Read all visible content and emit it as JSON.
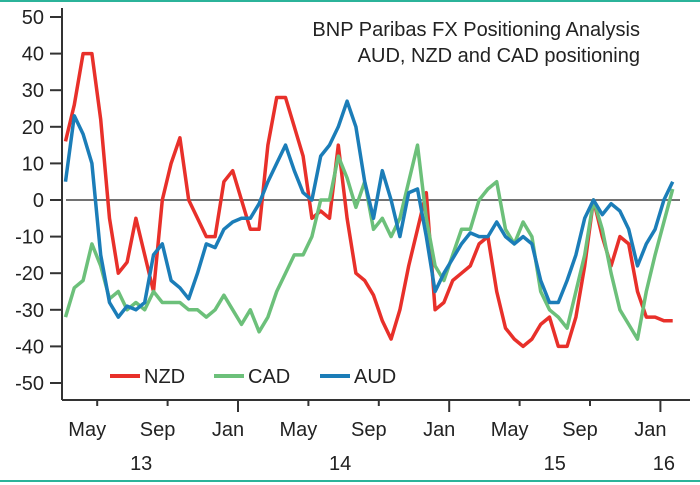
{
  "chart_data": {
    "type": "line",
    "title": "BNP Paribas FX Positioning Analysis",
    "subtitle": "AUD, NZD and CAD positioning",
    "xlabel": "",
    "ylabel": "",
    "ylim": [
      -50,
      50
    ],
    "yticks": [
      50,
      40,
      30,
      20,
      10,
      0,
      -10,
      -20,
      -30,
      -40,
      -50
    ],
    "x_units": "months since Jan 2013",
    "xlim": [
      2.2,
      36.9
    ],
    "x_start": 2.2,
    "x_step": 0.5,
    "xticks": [
      {
        "month": 4,
        "label": "May",
        "major": false
      },
      {
        "month": 8,
        "label": "Sep",
        "major": false
      },
      {
        "month": 12,
        "label": "Jan",
        "major": true
      },
      {
        "month": 16,
        "label": "May",
        "major": false
      },
      {
        "month": 20,
        "label": "Sep",
        "major": false
      },
      {
        "month": 24,
        "label": "Jan",
        "major": true
      },
      {
        "month": 28,
        "label": "May",
        "major": false
      },
      {
        "month": 32,
        "label": "Sep",
        "major": false
      },
      {
        "month": 36,
        "label": "Jan",
        "major": true
      }
    ],
    "year_labels": [
      {
        "month": 6.5,
        "label": "13"
      },
      {
        "month": 17.8,
        "label": "14"
      },
      {
        "month": 30.0,
        "label": "15"
      },
      {
        "month": 36.2,
        "label": "16"
      }
    ],
    "zero_line": true,
    "grid": false,
    "legend_position": "bottom-left",
    "series": [
      {
        "name": "NZD",
        "color": "#e8302a",
        "values": [
          16,
          26,
          40,
          40,
          22,
          -5,
          -20,
          -17,
          -5,
          -15,
          -25,
          0,
          10,
          17,
          0,
          -5,
          -10,
          -10,
          5,
          8,
          0,
          -8,
          -8,
          15,
          28,
          28,
          20,
          12,
          -5,
          -3,
          -5,
          15,
          -5,
          -20,
          -22,
          -26,
          -33,
          -38,
          -30,
          -18,
          -8,
          2,
          -30,
          -28,
          -22,
          -20,
          -18,
          -12,
          -10,
          -25,
          -35,
          -38,
          -40,
          -38,
          -34,
          -32,
          -40,
          -40,
          -32,
          -18,
          0,
          -10,
          -18,
          -10,
          -12,
          -25,
          -32,
          -32,
          -33,
          -33
        ]
      },
      {
        "name": "CAD",
        "color": "#6cc07a",
        "values": [
          -32,
          -24,
          -22,
          -12,
          -18,
          -27,
          -25,
          -30,
          -28,
          -30,
          -25,
          -28,
          -28,
          -28,
          -30,
          -30,
          -32,
          -30,
          -26,
          -30,
          -34,
          -30,
          -36,
          -32,
          -25,
          -20,
          -15,
          -15,
          -10,
          0,
          0,
          12,
          6,
          -2,
          5,
          -8,
          -5,
          -10,
          -5,
          5,
          15,
          -5,
          -18,
          -22,
          -15,
          -8,
          -8,
          0,
          3,
          5,
          -8,
          -12,
          -6,
          -10,
          -25,
          -30,
          -32,
          -35,
          -25,
          -15,
          0,
          -8,
          -20,
          -30,
          -34,
          -38,
          -25,
          -15,
          -6,
          3
        ]
      },
      {
        "name": "AUD",
        "color": "#1b7db8",
        "values": [
          5,
          23,
          18,
          10,
          -15,
          -28,
          -32,
          -29,
          -30,
          -28,
          -15,
          -12,
          -22,
          -24,
          -27,
          -20,
          -12,
          -13,
          -8,
          -6,
          -5,
          -5,
          -1,
          5,
          10,
          15,
          8,
          2,
          0,
          12,
          15,
          20,
          27,
          20,
          5,
          -5,
          8,
          0,
          -10,
          2,
          3,
          -10,
          -25,
          -20,
          -16,
          -12,
          -9,
          -10,
          -10,
          -6,
          -10,
          -12,
          -10,
          -12,
          -22,
          -28,
          -28,
          -22,
          -15,
          -5,
          0,
          -4,
          -1,
          -3,
          -8,
          -18,
          -12,
          -8,
          0,
          5
        ]
      }
    ],
    "frame_color": "#2bb39a"
  }
}
